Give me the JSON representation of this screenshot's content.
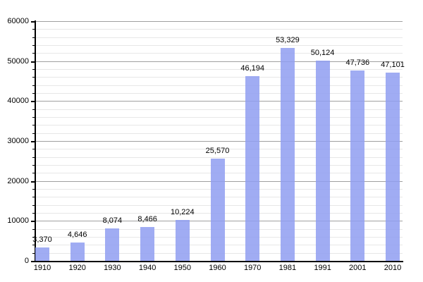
{
  "chart_data": {
    "type": "bar",
    "title": "",
    "xlabel": "",
    "ylabel": "",
    "categories": [
      "1910",
      "1920",
      "1930",
      "1940",
      "1950",
      "1960",
      "1970",
      "1981",
      "1991",
      "2001",
      "2010"
    ],
    "values": [
      3370,
      4646,
      8074,
      8466,
      10224,
      25570,
      46194,
      53329,
      50124,
      47736,
      47101
    ],
    "value_labels": [
      "3,370",
      "4,646",
      "8,074",
      "8,466",
      "10,224",
      "25,570",
      "46,194",
      "53,329",
      "50,124",
      "47,736",
      "47,101"
    ],
    "ylim": [
      0,
      60000
    ],
    "y_major_step": 10000,
    "y_minor_step": 2000,
    "y_tick_labels": [
      "0",
      "10000",
      "20000",
      "30000",
      "40000",
      "50000",
      "60000"
    ],
    "grid": true,
    "legend": false,
    "colors": {
      "bar_fill": "#8f9ef1",
      "bar_opacity": "0.85",
      "major_grid": "#a0a0a0",
      "minor_grid": "#e7e7e7",
      "axis": "#000000",
      "text": "#000000",
      "background": "#ffffff"
    }
  }
}
